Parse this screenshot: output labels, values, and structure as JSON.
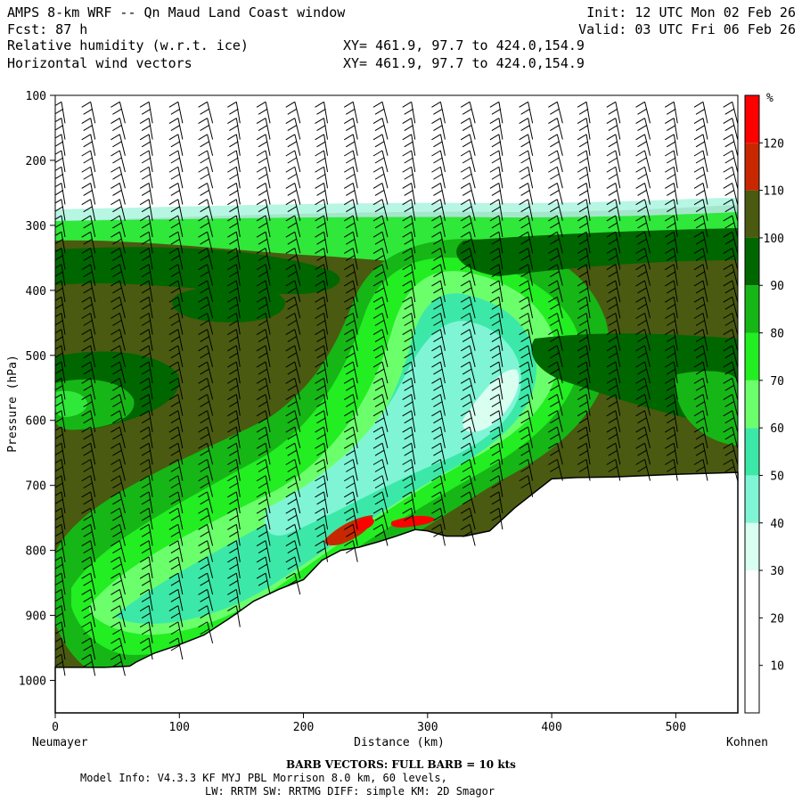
{
  "header": {
    "line1_left": "AMPS 8-km WRF -- Qn Maud Land Coast window",
    "line1_right": "Init: 12 UTC Mon 02 Feb 26",
    "line2_left": "Fcst:   87 h",
    "line2_right": "Valid: 03 UTC Fri 06 Feb 26",
    "line3_left": "Relative humidity (w.r.t. ice)",
    "line3_right": "XY= 461.9, 97.7 to 424.0,154.9",
    "line4_left": "Horizontal wind vectors",
    "line4_right": "XY= 461.9, 97.7 to 424.0,154.9"
  },
  "footer": {
    "barb_info": "BARB VECTORS:  FULL BARB = 10 kts",
    "model_line1": "Model Info: V4.3.3   KF      MYJ PBL  Morrison          8.0 km,  60 levels,",
    "model_line2": "LW: RRTM SW: RRTMG   DIFF: simple KM: 2D Smagor"
  },
  "chart_data": {
    "type": "heatmap",
    "title": "Relative humidity (w.r.t. ice)",
    "xlabel": "Distance (km)",
    "ylabel": "Pressure (hPa)",
    "x_start_label": "Neumayer",
    "x_end_label": "Kohnen",
    "xlim": [
      0,
      550
    ],
    "ylim": [
      1050,
      100
    ],
    "x_ticks": [
      0,
      100,
      200,
      300,
      400,
      500
    ],
    "y_ticks": [
      100,
      200,
      300,
      400,
      500,
      600,
      700,
      800,
      900,
      1000
    ],
    "colorbar": {
      "unit": "%",
      "levels": [
        10,
        20,
        30,
        40,
        50,
        60,
        70,
        80,
        90,
        100,
        110,
        120
      ],
      "colors": [
        "#ffffff",
        "#ffffff",
        "#ffffff",
        "#d8fff0",
        "#7ff5d6",
        "#3ce8a8",
        "#6cff6c",
        "#22ee22",
        "#16b616",
        "#006600",
        "#4a5a10",
        "#c82800",
        "#ff0000"
      ]
    },
    "terrain_surface_pressure": {
      "x": [
        0,
        40,
        60,
        65,
        80,
        100,
        120,
        140,
        160,
        180,
        200,
        215,
        230,
        245,
        260,
        275,
        290,
        300,
        315,
        330,
        350,
        370,
        390,
        400,
        420,
        450,
        500,
        550
      ],
      "p": [
        980,
        980,
        978,
        972,
        958,
        945,
        930,
        905,
        878,
        860,
        845,
        815,
        800,
        795,
        787,
        778,
        768,
        770,
        778,
        778,
        770,
        735,
        705,
        690,
        688,
        687,
        683,
        680
      ]
    },
    "moist_layer_top_hPa": 290,
    "wind_barbs": "FULL BARB = 10 kts"
  }
}
